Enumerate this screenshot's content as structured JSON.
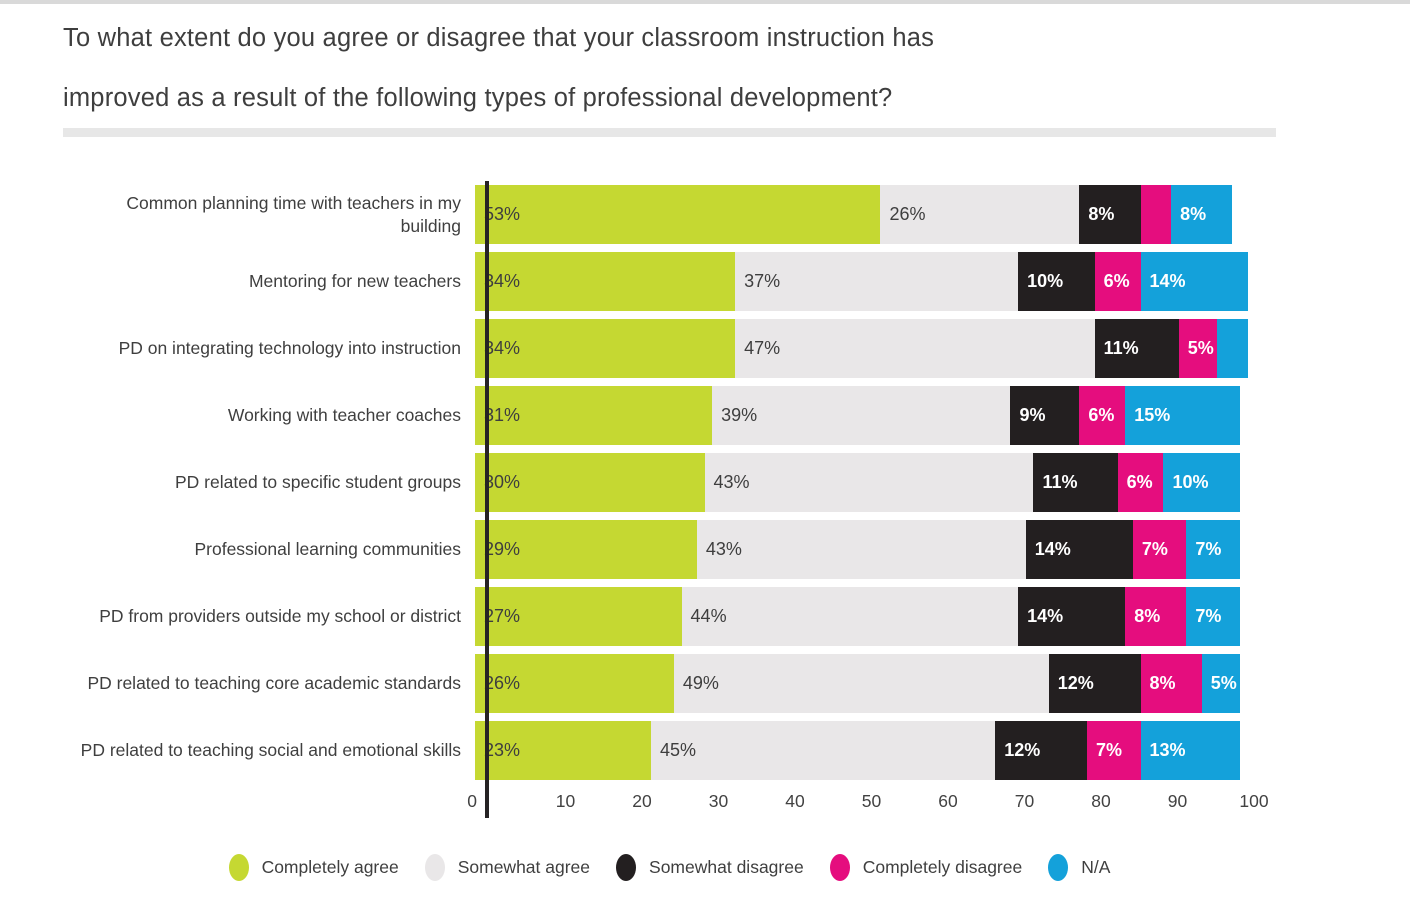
{
  "page": {
    "title_line1": "To what extent do you agree or disagree that your classroom instruction has",
    "title_line2": "improved as a result of the following types of professional development?"
  },
  "chart_data": {
    "type": "bar",
    "variant": "horizontal-stacked",
    "unit": "percent",
    "title": "To what extent do you agree or disagree that your classroom instruction has improved as a result of the following types of professional development?",
    "legend_position": "bottom",
    "grid": "off",
    "label_colors": {
      "on_light_segments": "#3e3e3e",
      "on_dark_segments": "#ffffff"
    },
    "series": [
      {
        "name": "Completely agree",
        "color": "#c5d832"
      },
      {
        "name": "Somewhat agree",
        "color": "#e9e7e8"
      },
      {
        "name": "Somewhat disagree",
        "color": "#231f20"
      },
      {
        "name": "Completely disagree",
        "color": "#e50d7e"
      },
      {
        "name": "N/A",
        "color": "#14a1da"
      }
    ],
    "rows": [
      {
        "category": "Common planning time with teachers in my building",
        "values": [
          53,
          26,
          8,
          4,
          8
        ],
        "labels": [
          "53%",
          "26%",
          "8%",
          "",
          "8%"
        ]
      },
      {
        "category": "Mentoring for new teachers",
        "values": [
          34,
          37,
          10,
          6,
          14
        ],
        "labels": [
          "34%",
          "37%",
          "10%",
          "6%",
          "14%"
        ]
      },
      {
        "category": "PD on integrating technology into instruction",
        "values": [
          34,
          47,
          11,
          5,
          4
        ],
        "labels": [
          "34%",
          "47%",
          "11%",
          "5%",
          ""
        ]
      },
      {
        "category": "Working with teacher coaches",
        "values": [
          31,
          39,
          9,
          6,
          15
        ],
        "labels": [
          "31%",
          "39%",
          "9%",
          "6%",
          "15%"
        ]
      },
      {
        "category": "PD related to specific student groups",
        "values": [
          30,
          43,
          11,
          6,
          10
        ],
        "labels": [
          "30%",
          "43%",
          "11%",
          "6%",
          "10%"
        ]
      },
      {
        "category": "Professional learning communities",
        "values": [
          29,
          43,
          14,
          7,
          7
        ],
        "labels": [
          "29%",
          "43%",
          "14%",
          "7%",
          "7%"
        ]
      },
      {
        "category": "PD from providers outside my school or district",
        "values": [
          27,
          44,
          14,
          8,
          7
        ],
        "labels": [
          "27%",
          "44%",
          "14%",
          "8%",
          "7%"
        ]
      },
      {
        "category": "PD related to teaching core academic standards",
        "values": [
          26,
          49,
          12,
          8,
          5
        ],
        "labels": [
          "26%",
          "49%",
          "12%",
          "8%",
          "5%"
        ]
      },
      {
        "category": "PD related to teaching social and emotional skills",
        "values": [
          23,
          45,
          12,
          7,
          13
        ],
        "labels": [
          "23%",
          "45%",
          "12%",
          "7%",
          "13%"
        ]
      }
    ],
    "x_axis": {
      "min": 0,
      "max": 100,
      "ticks": [
        0,
        10,
        20,
        30,
        40,
        50,
        60,
        70,
        80,
        90,
        100
      ]
    }
  }
}
